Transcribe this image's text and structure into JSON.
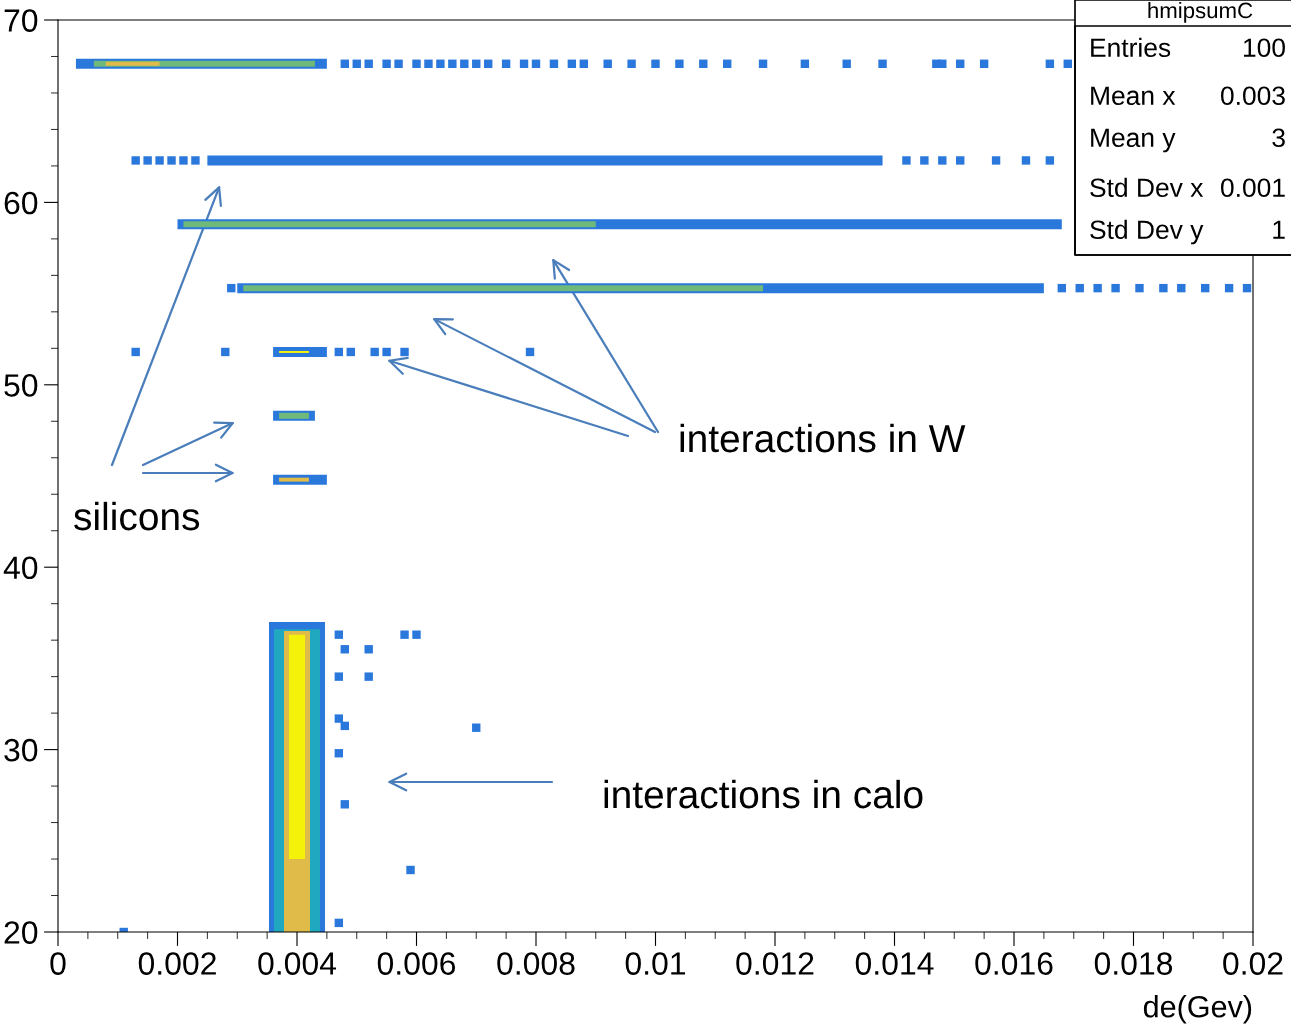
{
  "chart_data": {
    "type": "scatter",
    "xlabel": "de(Gev)",
    "xlim": [
      0,
      0.02
    ],
    "ylim": [
      20,
      70
    ],
    "xticks": [
      0,
      0.002,
      0.004,
      0.006,
      0.008,
      0.01,
      0.012,
      0.014,
      0.016,
      0.018,
      0.02
    ],
    "yticks": [
      20,
      30,
      40,
      50,
      60,
      70
    ],
    "line_style": "solid",
    "series": [
      {
        "type": "line",
        "color": "#2a78dc",
        "x": [
          0.0003,
          0.0045
        ],
        "values": [
          67.6,
          67.6
        ]
      },
      {
        "type": "line",
        "color": "#6fb97a",
        "x": [
          0.0006,
          0.0043
        ],
        "values": [
          67.6,
          67.6
        ]
      },
      {
        "type": "line",
        "color": "#e0bb4a",
        "x": [
          0.0008,
          0.0017
        ],
        "values": [
          67.6,
          67.6
        ]
      },
      {
        "marker": "square",
        "color": "#2a78dc",
        "x": [
          0.0048,
          0.005,
          0.0052,
          0.0055,
          0.0057,
          0.006,
          0.0062,
          0.0064,
          0.0066,
          0.0068,
          0.007,
          0.0072,
          0.0075,
          0.0078,
          0.008,
          0.0083,
          0.0086,
          0.0088,
          0.0092,
          0.0096,
          0.01,
          0.0104,
          0.0108,
          0.0112,
          0.0118,
          0.0125,
          0.0132,
          0.0138,
          0.0147,
          0.0148,
          0.0151,
          0.0155,
          0.0166,
          0.0169
        ],
        "values": [
          67.6,
          67.6,
          67.6,
          67.6,
          67.6,
          67.6,
          67.6,
          67.6,
          67.6,
          67.6,
          67.6,
          67.6,
          67.6,
          67.6,
          67.6,
          67.6,
          67.6,
          67.6,
          67.6,
          67.6,
          67.6,
          67.6,
          67.6,
          67.6,
          67.6,
          67.6,
          67.6,
          67.6,
          67.6,
          67.6,
          67.6,
          67.6,
          67.6,
          67.6
        ]
      },
      {
        "type": "line",
        "color": "#2a78dc",
        "x": [
          0.0025,
          0.0138
        ],
        "values": [
          62.3,
          62.3
        ]
      },
      {
        "marker": "square",
        "color": "#2a78dc",
        "x": [
          0.0013,
          0.0015,
          0.0017,
          0.0019,
          0.0021,
          0.0023,
          0.0142,
          0.0145,
          0.0148,
          0.0151,
          0.0157,
          0.0162,
          0.0166
        ],
        "values": [
          62.3,
          62.3,
          62.3,
          62.3,
          62.3,
          62.3,
          62.3,
          62.3,
          62.3,
          62.3,
          62.3,
          62.3,
          62.3
        ]
      },
      {
        "type": "line",
        "color": "#2a78dc",
        "x": [
          0.002,
          0.0168
        ],
        "values": [
          58.8,
          58.8
        ]
      },
      {
        "type": "line",
        "color": "#6fb97a",
        "x": [
          0.0021,
          0.009
        ],
        "values": [
          58.8,
          58.8
        ]
      },
      {
        "type": "line",
        "color": "#2a78dc",
        "x": [
          0.003,
          0.0165
        ],
        "values": [
          55.3,
          55.3
        ]
      },
      {
        "type": "line",
        "color": "#6fb97a",
        "x": [
          0.0031,
          0.0118
        ],
        "values": [
          55.3,
          55.3
        ]
      },
      {
        "marker": "square",
        "color": "#2a78dc",
        "x": [
          0.0029,
          0.0168,
          0.0171,
          0.0174,
          0.0177,
          0.0181,
          0.0185,
          0.0188,
          0.0192,
          0.0196,
          0.0199
        ],
        "values": [
          55.3,
          55.3,
          55.3,
          55.3,
          55.3,
          55.3,
          55.3,
          55.3,
          55.3,
          55.3,
          55.3
        ]
      },
      {
        "type": "line",
        "color": "#2a78dc",
        "x": [
          0.0036,
          0.0045
        ],
        "values": [
          51.8,
          51.8
        ]
      },
      {
        "type": "line",
        "color": "#f5f20a",
        "x": [
          0.0037,
          0.0042
        ],
        "values": [
          51.8,
          51.8
        ]
      },
      {
        "marker": "square",
        "color": "#2a78dc",
        "x": [
          0.0013,
          0.0028,
          0.0047,
          0.0049,
          0.0053,
          0.0055,
          0.0058,
          0.0079
        ],
        "values": [
          51.8,
          51.8,
          51.8,
          51.8,
          51.8,
          51.8,
          51.8,
          51.8
        ]
      },
      {
        "type": "line",
        "color": "#2a78dc",
        "x": [
          0.0036,
          0.0043
        ],
        "values": [
          48.3,
          48.3
        ]
      },
      {
        "type": "line",
        "color": "#6fb97a",
        "x": [
          0.0037,
          0.0042
        ],
        "values": [
          48.3,
          48.3
        ]
      },
      {
        "type": "line",
        "color": "#2a78dc",
        "x": [
          0.0036,
          0.0045
        ],
        "values": [
          44.8,
          44.8
        ]
      },
      {
        "type": "line",
        "color": "#e0bb4a",
        "x": [
          0.0037,
          0.0042
        ],
        "values": [
          44.8,
          44.8
        ]
      },
      {
        "type": "line",
        "color": "#2a78dc",
        "x": [
          0.004,
          0.004
        ],
        "values": [
          20,
          37
        ]
      },
      {
        "type": "line",
        "color": "#20a8c0",
        "x": [
          0.004,
          0.004
        ],
        "values": [
          20,
          36.6
        ]
      },
      {
        "type": "line",
        "color": "#e0bb4a",
        "x": [
          0.004,
          0.004
        ],
        "values": [
          20,
          36.5
        ]
      },
      {
        "type": "line",
        "color": "#f5f20a",
        "x": [
          0.004,
          0.004
        ],
        "values": [
          24,
          36.3
        ]
      },
      {
        "marker": "square",
        "color": "#2a78dc",
        "x": [
          0.0047,
          0.0048,
          0.0052,
          0.0058,
          0.006,
          0.0047,
          0.0052,
          0.0047,
          0.0048,
          0.007,
          0.0059,
          0.0047,
          0.0048,
          0.0047,
          0.0011
        ],
        "values": [
          36.3,
          35.5,
          35.5,
          36.3,
          36.3,
          34,
          34,
          31.7,
          31.3,
          31.2,
          23.4,
          29.8,
          27,
          20.5,
          20
        ]
      }
    ],
    "annotations": [
      "silicons",
      "interactions in W",
      "interactions in calo",
      "hmipsumC",
      "Entries",
      "100",
      "Mean x",
      "0.003",
      "Mean y",
      "3",
      "Std Dev x",
      "0.001",
      "Std Dev y",
      "1"
    ]
  }
}
